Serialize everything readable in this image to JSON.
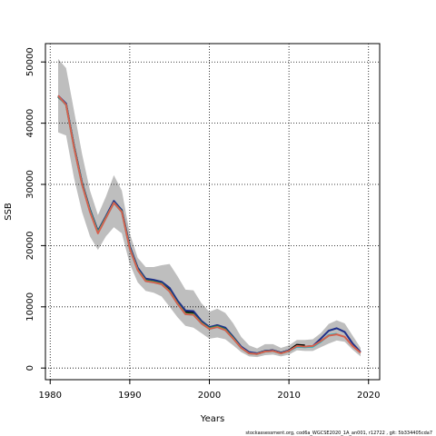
{
  "chart_data": {
    "type": "line",
    "xlabel": "Years",
    "ylabel": "SSB",
    "footnote": "stockassessment.org, cod6a_WGCSE2020_1A_an001, r12722 , git: 5b334405cda7",
    "x": [
      1981,
      1982,
      1983,
      1984,
      1985,
      1986,
      1987,
      1988,
      1989,
      1990,
      1991,
      1992,
      1993,
      1994,
      1995,
      1996,
      1997,
      1998,
      1999,
      2000,
      2001,
      2002,
      2003,
      2004,
      2005,
      2006,
      2007,
      2008,
      2009,
      2010,
      2011,
      2012,
      2013,
      2014,
      2015,
      2016,
      2017,
      2018,
      2019
    ],
    "band": {
      "color": "#bebebe",
      "lower": [
        38500,
        38000,
        31000,
        25500,
        21500,
        19300,
        21500,
        23000,
        22000,
        17000,
        14000,
        12600,
        12300,
        11700,
        10000,
        8300,
        6900,
        6600,
        5700,
        4800,
        5000,
        4700,
        3700,
        2600,
        1900,
        1800,
        2100,
        2200,
        1900,
        2200,
        2900,
        2800,
        2800,
        3400,
        4000,
        4500,
        4300,
        3000,
        1900
      ],
      "upper": [
        50500,
        49000,
        42000,
        35000,
        29000,
        25000,
        28000,
        31500,
        29000,
        22000,
        18000,
        16500,
        16500,
        16800,
        17000,
        15000,
        12800,
        12700,
        10600,
        9200,
        9700,
        9000,
        7300,
        5100,
        3700,
        3200,
        3900,
        3900,
        3300,
        3700,
        4600,
        4600,
        4700,
        5700,
        7200,
        7800,
        7300,
        5300,
        3300
      ]
    },
    "series": [
      {
        "color": "#000000",
        "values": [
          44300,
          43100,
          36200,
          30200,
          25800,
          22300,
          24700,
          27200,
          25700,
          19700,
          16200,
          14400,
          14200,
          13900,
          12900,
          10900,
          9200,
          9100,
          7600,
          6600,
          7000,
          6500,
          5000,
          3400,
          2500,
          2400,
          2800,
          2900,
          2500,
          2900,
          3800,
          3700,
          null,
          null,
          null,
          null,
          null,
          null,
          null
        ]
      },
      {
        "color": "#1e2f8a",
        "values": [
          44500,
          43200,
          36300,
          30300,
          25900,
          22400,
          24800,
          27300,
          25800,
          19900,
          16400,
          14600,
          14400,
          14100,
          13100,
          11000,
          9400,
          9300,
          7700,
          6700,
          7000,
          6600,
          5100,
          3500,
          2600,
          2400,
          2800,
          2900,
          2500,
          2900,
          3500,
          3500,
          3600,
          4800,
          6100,
          6500,
          5900,
          4000,
          2600
        ]
      },
      {
        "color": "#2ca02c",
        "values": [
          44400,
          43000,
          36100,
          30100,
          25700,
          22200,
          24600,
          27000,
          25600,
          19600,
          16100,
          14300,
          14100,
          13800,
          12600,
          10600,
          8900,
          8800,
          7400,
          6500,
          6800,
          6300,
          4900,
          3300,
          2400,
          2300,
          2700,
          2800,
          2400,
          2800,
          3600,
          3500,
          3500,
          4400,
          5300,
          null,
          null,
          null,
          null
        ]
      },
      {
        "color": "#17becf",
        "values": [
          44400,
          43000,
          36000,
          30000,
          25600,
          22100,
          24500,
          27000,
          25500,
          19500,
          16000,
          14200,
          14000,
          13700,
          12500,
          10500,
          8800,
          8700,
          7300,
          6400,
          6700,
          6200,
          4800,
          3300,
          2400,
          2300,
          2700,
          2800,
          2400,
          2800,
          3500,
          3400,
          3500,
          4300,
          5400,
          5600,
          null,
          null,
          null
        ]
      },
      {
        "color": "#d6604d",
        "values": [
          44500,
          43000,
          36000,
          30000,
          25500,
          22000,
          24500,
          27000,
          25500,
          19500,
          16000,
          14200,
          14000,
          13700,
          12500,
          10500,
          8800,
          8700,
          7300,
          6400,
          6700,
          6200,
          4800,
          3300,
          2400,
          2300,
          2700,
          2800,
          2400,
          2800,
          3600,
          3500,
          3600,
          4400,
          5300,
          5500,
          5100,
          3600,
          2500
        ]
      }
    ],
    "xlim": [
      1979.4,
      2021.4
    ],
    "ylim": [
      -1900,
      53000
    ],
    "xticks": [
      1980,
      1990,
      2000,
      2010,
      2020
    ],
    "yticks": [
      0,
      10000,
      20000,
      30000,
      40000,
      50000
    ],
    "grid": true
  }
}
